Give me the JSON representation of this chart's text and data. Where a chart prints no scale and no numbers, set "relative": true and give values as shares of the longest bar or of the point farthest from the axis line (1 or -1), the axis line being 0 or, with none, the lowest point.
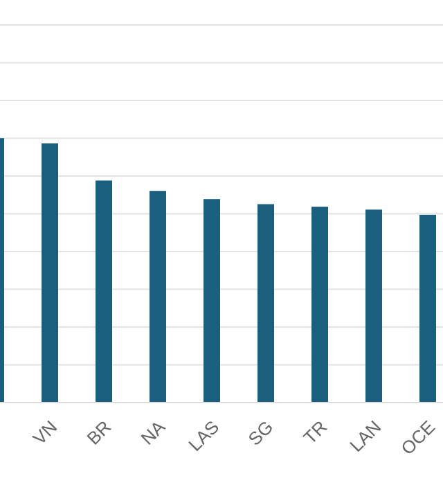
{
  "chart_data": {
    "type": "bar",
    "relative": true,
    "categories": [
      null,
      "VN",
      "BR",
      "NA",
      "LAS",
      "SG",
      "TR",
      "LAN",
      "OCE"
    ],
    "values": [
      1,
      0.98,
      0.84,
      0.8,
      0.77,
      0.75,
      0.74,
      0.73,
      0.71
    ],
    "color": "#1b5f7e",
    "grid": "y"
  }
}
